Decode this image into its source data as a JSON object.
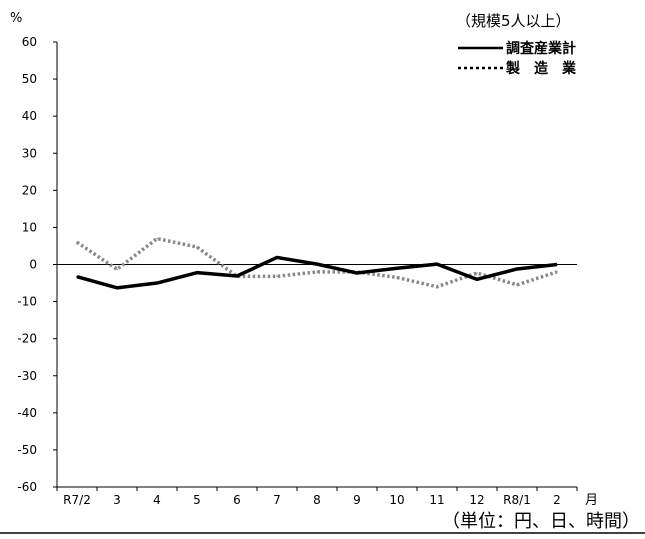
{
  "chart_data": {
    "type": "line",
    "y_unit": "%",
    "x_unit": "月",
    "scope_note": "（規模5人以上）",
    "unit_note": "（単位：円、日、時間）",
    "categories": [
      "R7/2",
      "3",
      "4",
      "5",
      "6",
      "7",
      "8",
      "9",
      "10",
      "11",
      "12",
      "R8/1",
      "2"
    ],
    "ylim": [
      -60,
      60
    ],
    "yticks": [
      60,
      50,
      40,
      30,
      20,
      10,
      0,
      -10,
      -20,
      -30,
      -40,
      -50,
      -60
    ],
    "grid": false,
    "legend_position": "top-right",
    "series": [
      {
        "name": "調査産業計",
        "style": "solid",
        "color": "#000000",
        "values": [
          -3.3,
          -6.3,
          -5.0,
          -2.2,
          -3.1,
          1.9,
          0.1,
          -2.3,
          -1.0,
          0.1,
          -4.0,
          -1.2,
          0.0
        ]
      },
      {
        "name": "製　造　業",
        "style": "dotted",
        "color": "#888888",
        "values": [
          6.0,
          -1.3,
          7.0,
          4.7,
          -3.2,
          -3.2,
          -2.0,
          -2.0,
          -3.5,
          -6.0,
          -2.3,
          -5.5,
          -2.0
        ]
      }
    ]
  }
}
